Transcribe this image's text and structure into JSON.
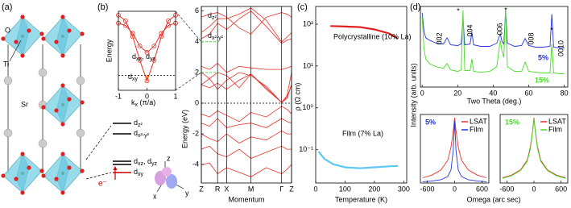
{
  "diagram": {
    "label": "(a)",
    "atoms": [
      "O",
      "Ti",
      "Sr"
    ],
    "levels": [
      [
        "d",
        "z²"
      ],
      [
        "d",
        "x²-y²"
      ],
      [
        "d",
        "xz",
        ", d",
        "yz"
      ],
      [
        "d",
        "xy"
      ]
    ],
    "electron": "e⁻",
    "axes": [
      "z",
      "x",
      "y"
    ]
  },
  "chart_data": [
    {
      "type": "line",
      "label": "(b)",
      "ylabel": "Energy",
      "xlabel": [
        "k",
        "x",
        " (π/a)"
      ],
      "xlim": [
        -1,
        1
      ],
      "ylim": [
        0,
        1
      ],
      "xticks": [
        -1,
        0,
        1
      ],
      "fermi_level": 0.19,
      "color": "#e8322a",
      "fill_color": "#f5a623",
      "annotations": [
        [
          "d",
          "xz",
          ", d",
          "yz"
        ],
        [
          "d",
          "xy"
        ]
      ],
      "x": [
        -1,
        -0.75,
        -0.5,
        -0.25,
        0,
        0.25,
        0.5,
        0.75,
        1
      ],
      "series": [
        {
          "values": [
            0.85,
            0.82,
            0.72,
            0.56,
            0.48,
            0.56,
            0.72,
            0.82,
            0.85
          ]
        },
        {
          "values": [
            0.95,
            0.88,
            0.68,
            0.38,
            0.12,
            0.38,
            0.68,
            0.88,
            0.95
          ]
        }
      ]
    },
    {
      "type": "line",
      "xlabel": "Momentum",
      "ylabel": "Energy (eV)",
      "xlim": [
        0,
        1
      ],
      "ylim": [
        -5.2,
        6.3
      ],
      "yticks": [
        -4,
        -2,
        0,
        2,
        4,
        6
      ],
      "xticks": [
        {
          "value": 0,
          "label": "Z"
        },
        {
          "value": 0.18,
          "label": "R"
        },
        {
          "value": 0.28,
          "label": "X"
        },
        {
          "value": 0.55,
          "label": "M"
        },
        {
          "value": 0.89,
          "label": "Γ"
        },
        {
          "value": 1,
          "label": "Z"
        }
      ],
      "fermi_level": 0,
      "color": "#e8322a",
      "annotations": [
        [
          "d",
          "z²"
        ],
        [
          "d",
          "x²-y²"
        ]
      ],
      "x": [
        0,
        0.09,
        0.18,
        0.28,
        0.42,
        0.55,
        0.72,
        0.89,
        0.95,
        1
      ],
      "series": [
        {
          "values": [
            1.2,
            1.6,
            2.0,
            1.8,
            1.0,
            1.9,
            1.0,
            0.05,
            0.3,
            1.2
          ]
        },
        {
          "values": [
            1.2,
            1.0,
            1.3,
            0.9,
            1.5,
            1.9,
            0.9,
            0.05,
            0.4,
            1.2
          ]
        },
        {
          "values": [
            2.0,
            1.6,
            0.9,
            1.5,
            2.0,
            1.8,
            1.1,
            0.05,
            0.5,
            2.0
          ]
        },
        {
          "values": [
            2.4,
            2.2,
            2.6,
            2.0,
            2.4,
            2.3,
            2.2,
            2.2,
            2.3,
            2.4
          ]
        },
        {
          "values": [
            4.2,
            4.5,
            5.2,
            4.8,
            5.5,
            6.0,
            5.0,
            3.9,
            4.1,
            4.2
          ]
        },
        {
          "values": [
            4.6,
            5.0,
            5.5,
            5.5,
            5.8,
            6.2,
            5.4,
            4.0,
            4.3,
            4.6
          ]
        },
        {
          "values": [
            5.6,
            5.8,
            5.9,
            5.6,
            4.9,
            4.5,
            5.6,
            5.9,
            5.8,
            5.6
          ]
        },
        {
          "values": [
            -0.7,
            -0.9,
            -0.5,
            -0.8,
            -1.2,
            -0.6,
            -0.9,
            -0.2,
            -0.4,
            -0.7
          ]
        },
        {
          "values": [
            -1.3,
            -1.5,
            -1.0,
            -1.6,
            -1.4,
            -1.3,
            -1.6,
            -1.0,
            -1.2,
            -1.3
          ]
        },
        {
          "values": [
            -2.0,
            -2.3,
            -2.5,
            -2.0,
            -2.6,
            -2.2,
            -2.4,
            -1.8,
            -2.0,
            -2.0
          ]
        },
        {
          "values": [
            -3.0,
            -2.8,
            -3.3,
            -3.5,
            -3.0,
            -3.6,
            -3.2,
            -2.8,
            -3.0,
            -3.0
          ]
        },
        {
          "values": [
            -4.0,
            -3.9,
            -4.6,
            -4.2,
            -4.5,
            -4.8,
            -4.2,
            -4.6,
            -4.3,
            -4.0
          ]
        }
      ]
    },
    {
      "type": "line",
      "label": "(c)",
      "xlabel": "Temperature (K)",
      "ylabel": "ρ (Ω cm)",
      "log_scale": true,
      "xlim": [
        0,
        310
      ],
      "ylim": [
        0.016,
        265
      ],
      "xticks": [
        0,
        100,
        200,
        300
      ],
      "yticks": [
        {
          "value": 0.1,
          "label": "10⁻¹"
        },
        {
          "value": 1,
          "label": "10⁰"
        },
        {
          "value": 10,
          "label": "10¹"
        },
        {
          "value": 100,
          "label": "10²"
        }
      ],
      "series": [
        {
          "name": "Polycrystalline (10% La)",
          "color": "#e02020",
          "x": [
            50,
            100,
            150,
            200,
            250,
            280
          ],
          "values": [
            90,
            88,
            85,
            75,
            60,
            45
          ]
        },
        {
          "name": "Film (7% La)",
          "color": "#5cc8f0",
          "x": [
            10,
            30,
            60,
            100,
            150,
            200,
            250,
            280
          ],
          "values": [
            0.09,
            0.06,
            0.045,
            0.038,
            0.036,
            0.038,
            0.04,
            0.041
          ]
        }
      ]
    },
    {
      "type": "line",
      "label": "(d)",
      "xlabel": "Two Theta (deg.)",
      "ylabel": "Intensity (arb. units)",
      "xlim": [
        -1,
        82
      ],
      "ylim": [
        0,
        10.3
      ],
      "xticks": [
        0,
        20,
        40,
        60,
        80
      ],
      "peak_labels": [
        "002",
        "004",
        "006",
        "008",
        "0010"
      ],
      "markers": [
        "*",
        "*",
        "*"
      ],
      "x": [
        0,
        1,
        2,
        4,
        8,
        12,
        14,
        16,
        20,
        22,
        23,
        24,
        27,
        28,
        29,
        33,
        38,
        42,
        44,
        45,
        46,
        47,
        48,
        52,
        56,
        58,
        60,
        64,
        68,
        72,
        73,
        74,
        78,
        80
      ],
      "series": [
        {
          "name": "5%",
          "color": "#2233dd",
          "values": [
            9.5,
            7.2,
            6.3,
            6.0,
            5.6,
            5.5,
            6.3,
            5.4,
            5.3,
            5.5,
            8.8,
            5.4,
            5.5,
            7.0,
            5.4,
            5.2,
            5.2,
            5.6,
            6.8,
            5.8,
            5.5,
            9.8,
            5.6,
            5.2,
            5.3,
            6.2,
            5.3,
            5.1,
            5.1,
            5.2,
            9.3,
            5.1,
            5.0,
            5.0
          ]
        },
        {
          "name": "15%",
          "color": "#44dd22",
          "values": [
            9.0,
            5.0,
            3.6,
            3.0,
            2.6,
            2.4,
            3.0,
            2.2,
            2.0,
            2.2,
            9.8,
            2.1,
            2.1,
            3.6,
            2.0,
            1.9,
            2.0,
            2.6,
            6.0,
            4.5,
            3.8,
            10,
            2.6,
            2.0,
            2.0,
            3.2,
            2.0,
            1.9,
            1.8,
            1.8,
            5.5,
            1.8,
            1.7,
            1.7
          ]
        }
      ]
    },
    {
      "type": "line",
      "title": "5%",
      "title_color": "#2233dd",
      "xlabel": "Omega (arc sec)",
      "xlim": [
        -750,
        750
      ],
      "ylim": [
        0,
        1.05
      ],
      "xticks": [
        -600,
        0,
        600
      ],
      "x": [
        -700,
        -500,
        -300,
        -150,
        -80,
        -30,
        0,
        30,
        80,
        150,
        300,
        500,
        700
      ],
      "series": [
        {
          "name": "LSAT",
          "color": "#e8322a",
          "values": [
            0.08,
            0.12,
            0.2,
            0.35,
            0.55,
            0.8,
            1,
            0.8,
            0.55,
            0.35,
            0.2,
            0.12,
            0.08
          ]
        },
        {
          "name": "Film",
          "color": "#2233dd",
          "values": [
            0.02,
            0.03,
            0.05,
            0.1,
            0.2,
            0.5,
            0.95,
            0.5,
            0.2,
            0.1,
            0.05,
            0.03,
            0.02
          ]
        }
      ]
    },
    {
      "type": "line",
      "title": "15%",
      "title_color": "#44dd22",
      "xlim": [
        -750,
        750
      ],
      "ylim": [
        0,
        1.05
      ],
      "xticks": [
        -600,
        0,
        600
      ],
      "x": [
        -700,
        -500,
        -300,
        -150,
        -80,
        -30,
        0,
        30,
        80,
        150,
        300,
        500,
        700
      ],
      "series": [
        {
          "name": "LSAT",
          "color": "#e8322a",
          "values": [
            0.08,
            0.12,
            0.2,
            0.35,
            0.55,
            0.8,
            1,
            0.8,
            0.55,
            0.35,
            0.2,
            0.12,
            0.08
          ]
        },
        {
          "name": "Film",
          "color": "#44dd22",
          "values": [
            0.07,
            0.11,
            0.19,
            0.33,
            0.52,
            0.78,
            0.98,
            0.78,
            0.52,
            0.33,
            0.19,
            0.11,
            0.07
          ]
        }
      ]
    }
  ]
}
